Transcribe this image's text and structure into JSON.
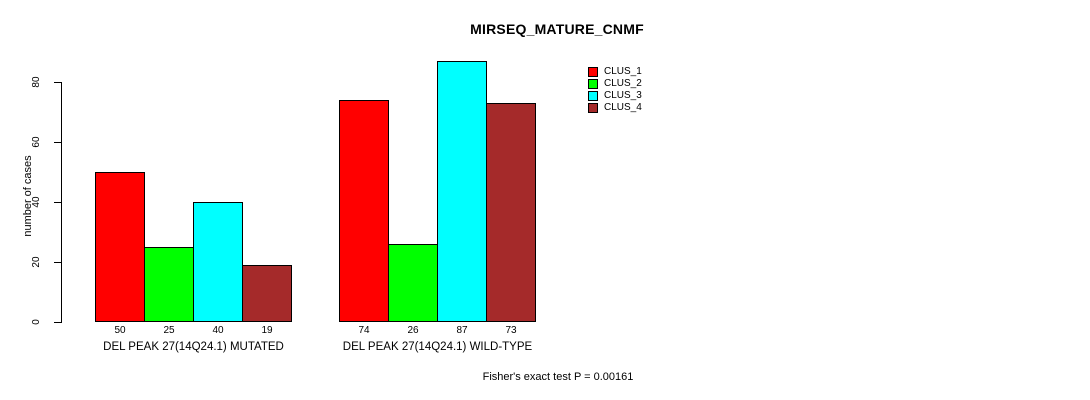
{
  "chart_data": {
    "type": "bar",
    "title": "MIRSEQ_MATURE_CNMF",
    "ylabel": "number of cases",
    "xlabel": "",
    "ylim": [
      0,
      87
    ],
    "yticks": [
      0,
      20,
      40,
      60,
      80
    ],
    "grid": false,
    "legend_position": "top-right",
    "categories": [
      "DEL PEAK 27(14Q24.1) MUTATED",
      "DEL PEAK 27(14Q24.1) WILD-TYPE"
    ],
    "series": [
      {
        "name": "CLUS_1",
        "color": "#FF0000",
        "values": [
          50,
          74
        ]
      },
      {
        "name": "CLUS_2",
        "color": "#00FF00",
        "values": [
          25,
          26
        ]
      },
      {
        "name": "CLUS_3",
        "color": "#00FFFF",
        "values": [
          40,
          87
        ]
      },
      {
        "name": "CLUS_4",
        "color": "#A52A2A",
        "values": [
          19,
          73
        ]
      }
    ],
    "bar_value_labels_shown": true,
    "annotation": "Fisher's exact test P = 0.00161"
  }
}
